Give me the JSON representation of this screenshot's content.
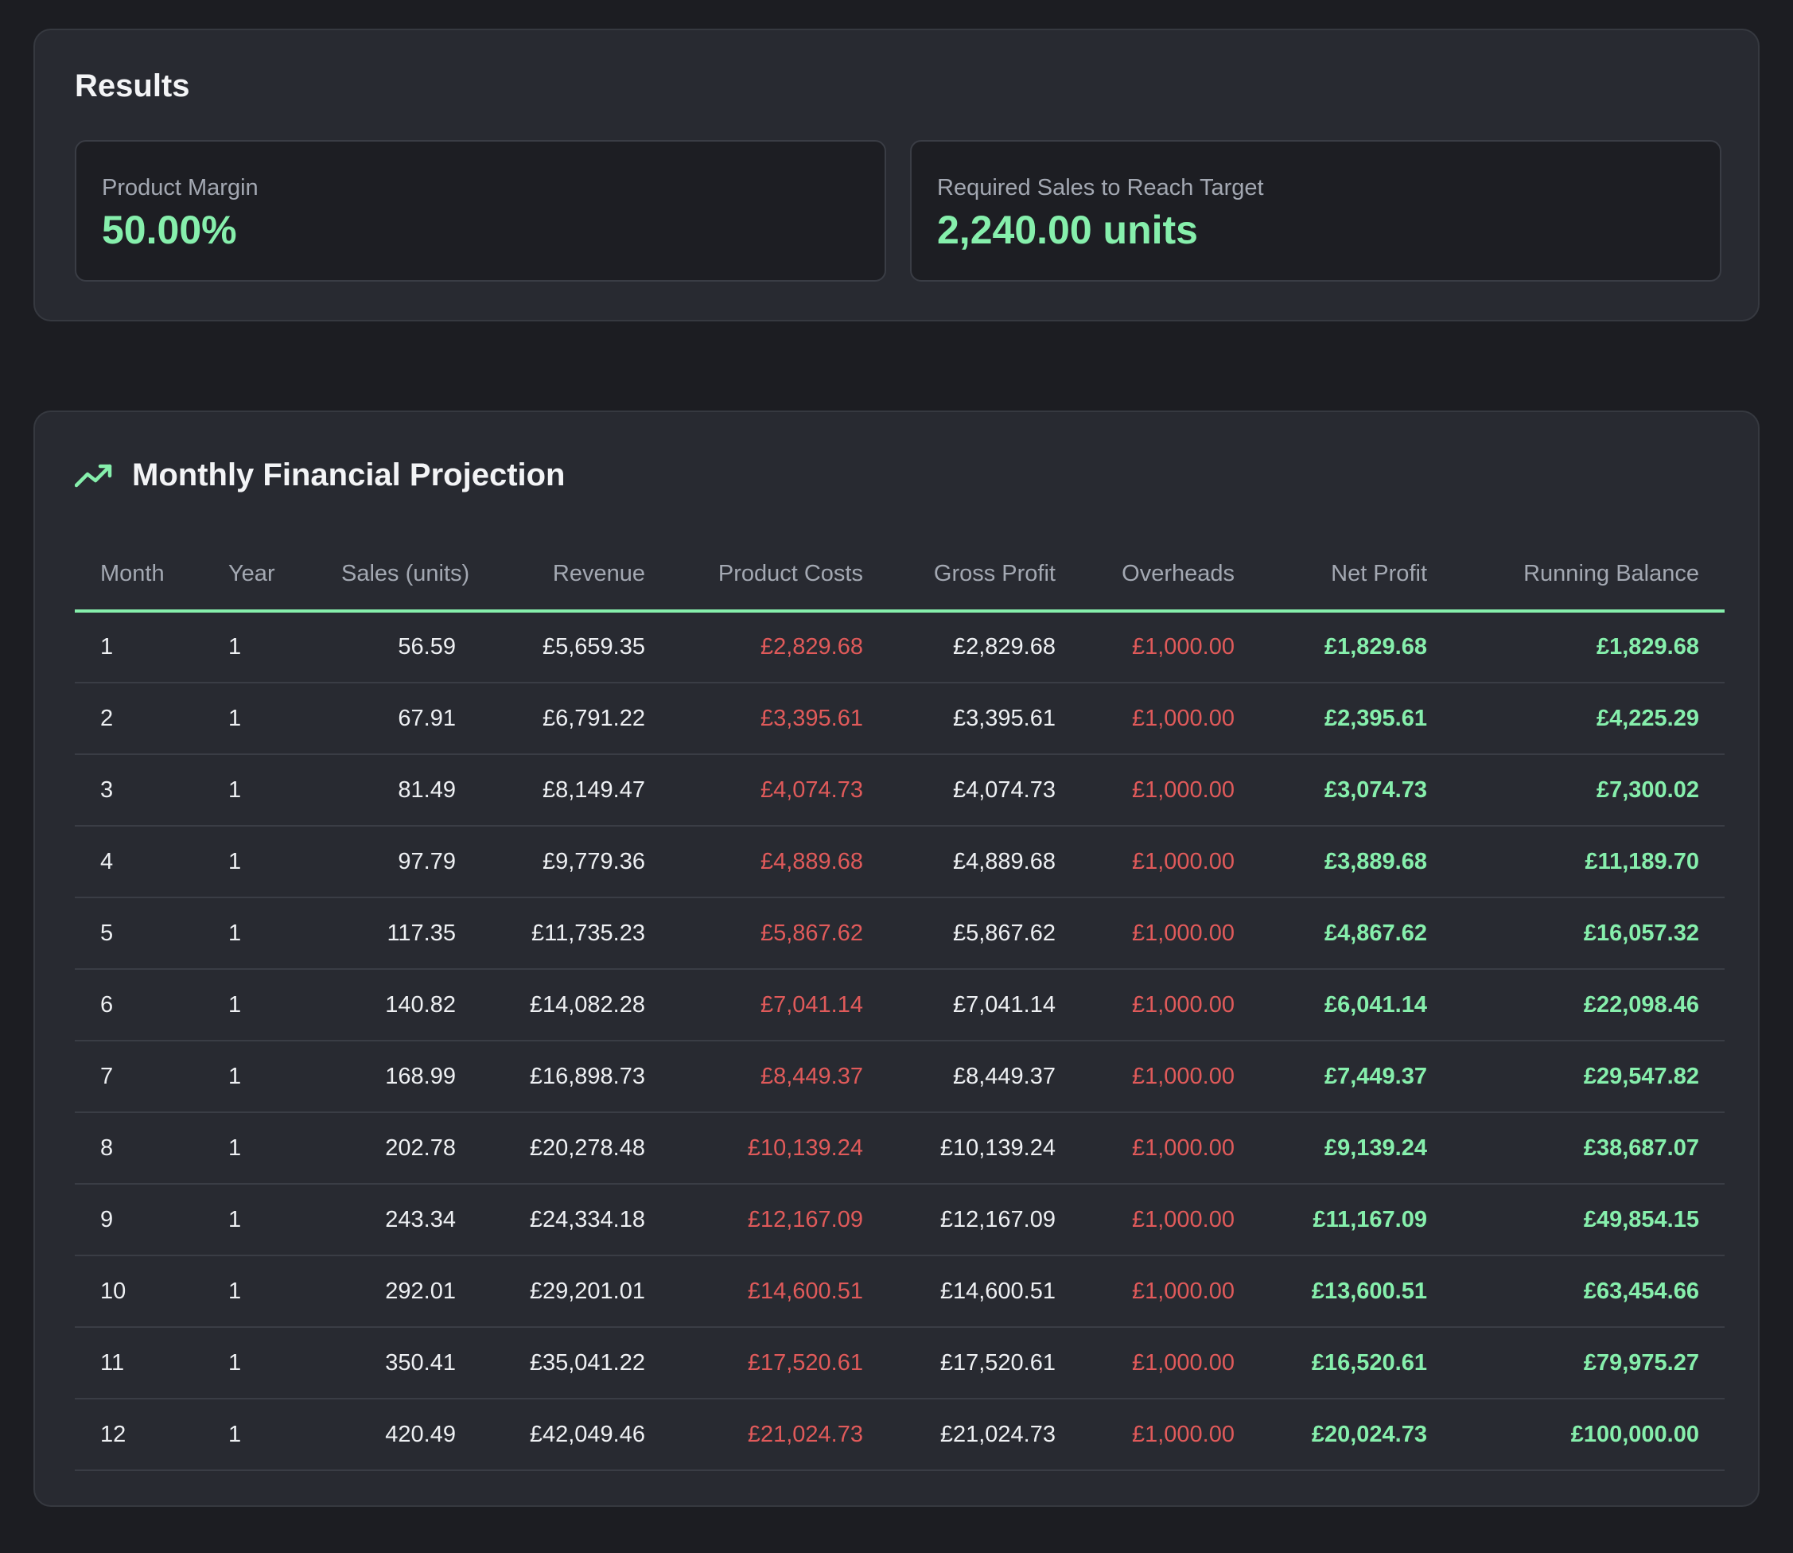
{
  "results": {
    "title": "Results",
    "cards": [
      {
        "label": "Product Margin",
        "value": "50.00%"
      },
      {
        "label": "Required Sales to Reach Target",
        "value": "2,240.00 units"
      }
    ]
  },
  "projection": {
    "title": "Monthly Financial Projection",
    "icon": "trending-up-icon",
    "headers": [
      "Month",
      "Year",
      "Sales (units)",
      "Revenue",
      "Product Costs",
      "Gross Profit",
      "Overheads",
      "Net Profit",
      "Running Balance"
    ],
    "rows": [
      [
        "1",
        "1",
        "56.59",
        "£5,659.35",
        "£2,829.68",
        "£2,829.68",
        "£1,000.00",
        "£1,829.68",
        "£1,829.68"
      ],
      [
        "2",
        "1",
        "67.91",
        "£6,791.22",
        "£3,395.61",
        "£3,395.61",
        "£1,000.00",
        "£2,395.61",
        "£4,225.29"
      ],
      [
        "3",
        "1",
        "81.49",
        "£8,149.47",
        "£4,074.73",
        "£4,074.73",
        "£1,000.00",
        "£3,074.73",
        "£7,300.02"
      ],
      [
        "4",
        "1",
        "97.79",
        "£9,779.36",
        "£4,889.68",
        "£4,889.68",
        "£1,000.00",
        "£3,889.68",
        "£11,189.70"
      ],
      [
        "5",
        "1",
        "117.35",
        "£11,735.23",
        "£5,867.62",
        "£5,867.62",
        "£1,000.00",
        "£4,867.62",
        "£16,057.32"
      ],
      [
        "6",
        "1",
        "140.82",
        "£14,082.28",
        "£7,041.14",
        "£7,041.14",
        "£1,000.00",
        "£6,041.14",
        "£22,098.46"
      ],
      [
        "7",
        "1",
        "168.99",
        "£16,898.73",
        "£8,449.37",
        "£8,449.37",
        "£1,000.00",
        "£7,449.37",
        "£29,547.82"
      ],
      [
        "8",
        "1",
        "202.78",
        "£20,278.48",
        "£10,139.24",
        "£10,139.24",
        "£1,000.00",
        "£9,139.24",
        "£38,687.07"
      ],
      [
        "9",
        "1",
        "243.34",
        "£24,334.18",
        "£12,167.09",
        "£12,167.09",
        "£1,000.00",
        "£11,167.09",
        "£49,854.15"
      ],
      [
        "10",
        "1",
        "292.01",
        "£29,201.01",
        "£14,600.51",
        "£14,600.51",
        "£1,000.00",
        "£13,600.51",
        "£63,454.66"
      ],
      [
        "11",
        "1",
        "350.41",
        "£35,041.22",
        "£17,520.61",
        "£17,520.61",
        "£1,000.00",
        "£16,520.61",
        "£79,975.27"
      ],
      [
        "12",
        "1",
        "420.49",
        "£42,049.46",
        "£21,024.73",
        "£21,024.73",
        "£1,000.00",
        "£20,024.73",
        "£100,000.00"
      ]
    ]
  },
  "colors": {
    "background": "#1c1d22",
    "panel": "#282a31",
    "accent_green": "#86efac",
    "negative_red": "#e05a5a",
    "muted_text": "#a3a8b2"
  }
}
